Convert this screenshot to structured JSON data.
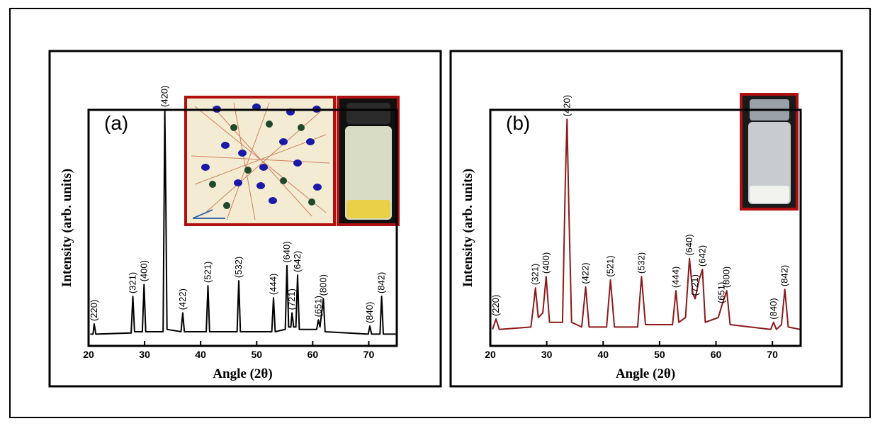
{
  "chart_data": [
    {
      "type": "line",
      "panel_label": "(a)",
      "xlabel": "Angle (2θ)",
      "ylabel": "Intensity (arb. units)",
      "x": [
        20.3,
        20.8,
        21.0,
        21.3,
        27.6,
        27.9,
        28.2,
        29.6,
        29.9,
        30.2,
        33.3,
        33.6,
        33.8,
        34.0,
        36.5,
        36.8,
        37.1,
        41.0,
        41.3,
        41.6,
        46.5,
        46.8,
        47.1,
        52.7,
        53.0,
        53.3,
        55.1,
        55.4,
        55.7,
        56.1,
        56.3,
        56.6,
        57.0,
        57.3,
        57.6,
        60.7,
        61.0,
        61.3,
        61.9,
        62.2,
        69.9,
        70.2,
        70.5,
        72.0,
        72.3,
        72.6,
        74.8
      ],
      "series": [
        {
          "color": "#000000",
          "values": [
            5,
            5,
            9.3,
            5,
            5.5,
            21,
            6,
            6,
            26,
            6,
            6,
            100,
            60,
            7,
            6,
            14,
            6,
            6,
            25.5,
            6,
            6,
            27.6,
            6,
            6,
            20.4,
            6,
            7,
            34,
            8,
            8,
            14,
            8,
            8,
            30,
            7,
            7,
            11,
            8,
            20,
            6,
            5,
            8.4,
            5,
            5,
            21,
            5,
            5
          ]
        }
      ],
      "xlim": [
        20,
        75
      ],
      "xticks": [
        20,
        30,
        40,
        50,
        60,
        70
      ],
      "ylim": [
        0,
        100
      ],
      "peak_labels": [
        {
          "label": "(220)",
          "x": 21.0
        },
        {
          "label": "(321)",
          "x": 27.9
        },
        {
          "label": "(400)",
          "x": 29.9
        },
        {
          "label": "(420)",
          "x": 33.6
        },
        {
          "label": "(422)",
          "x": 36.8
        },
        {
          "label": "(521)",
          "x": 41.3
        },
        {
          "label": "(532)",
          "x": 46.8
        },
        {
          "label": "(444)",
          "x": 53.0
        },
        {
          "label": "(640)",
          "x": 55.4
        },
        {
          "label": "(721)",
          "x": 56.3
        },
        {
          "label": "(642)",
          "x": 57.3
        },
        {
          "label": "(651)",
          "x": 61.0
        },
        {
          "label": "(800)",
          "x": 61.9
        },
        {
          "label": "(840)",
          "x": 70.2
        },
        {
          "label": "(842)",
          "x": 72.3
        }
      ]
    },
    {
      "type": "line",
      "panel_label": "(b)",
      "xlabel": "Angle (2θ)",
      "ylabel": "Intensity (arb. units)",
      "x": [
        20.4,
        21.0,
        21.6,
        27.2,
        27.7,
        28.0,
        28.5,
        29.3,
        29.9,
        30.5,
        32.8,
        33.3,
        33.6,
        33.9,
        34.4,
        36.2,
        36.9,
        37.5,
        40.6,
        41.3,
        42.0,
        46.1,
        46.8,
        47.5,
        52.3,
        52.9,
        53.4,
        54.6,
        55.3,
        55.9,
        56.3,
        57.0,
        57.6,
        58.1,
        60.4,
        61.0,
        61.9,
        62.5,
        69.7,
        70.2,
        70.7,
        71.6,
        72.2,
        72.8,
        74.9
      ],
      "series": [
        {
          "color": "#8b1a1a",
          "values": [
            7,
            11.4,
            7,
            8,
            18,
            24.6,
            12,
            14,
            29.4,
            10,
            10,
            70,
            96,
            60,
            10,
            8,
            25,
            8,
            8,
            28,
            8,
            8,
            29.4,
            9,
            9,
            23.4,
            10,
            12,
            37,
            22,
            20,
            28,
            32.4,
            10,
            12,
            16.8,
            23.4,
            9,
            7,
            10,
            7,
            9,
            24,
            8,
            7
          ]
        }
      ],
      "xlim": [
        20,
        75
      ],
      "xticks": [
        20,
        30,
        40,
        50,
        60,
        70
      ],
      "ylim": [
        0,
        100
      ],
      "peak_labels": [
        {
          "label": "(220)",
          "x": 21.0
        },
        {
          "label": "(321)",
          "x": 28.0
        },
        {
          "label": "(400)",
          "x": 29.9
        },
        {
          "label": "(420)",
          "x": 33.6
        },
        {
          "label": "(422)",
          "x": 36.9
        },
        {
          "label": "(521)",
          "x": 41.3
        },
        {
          "label": "(532)",
          "x": 46.8
        },
        {
          "label": "(444)",
          "x": 52.9
        },
        {
          "label": "(640)",
          "x": 55.3
        },
        {
          "label": "(721)",
          "x": 56.3
        },
        {
          "label": "(642)",
          "x": 57.6
        },
        {
          "label": "(651)",
          "x": 61.0
        },
        {
          "label": "(800)",
          "x": 61.9
        },
        {
          "label": "(840)",
          "x": 70.2
        },
        {
          "label": "(842)",
          "x": 72.2
        }
      ]
    }
  ]
}
